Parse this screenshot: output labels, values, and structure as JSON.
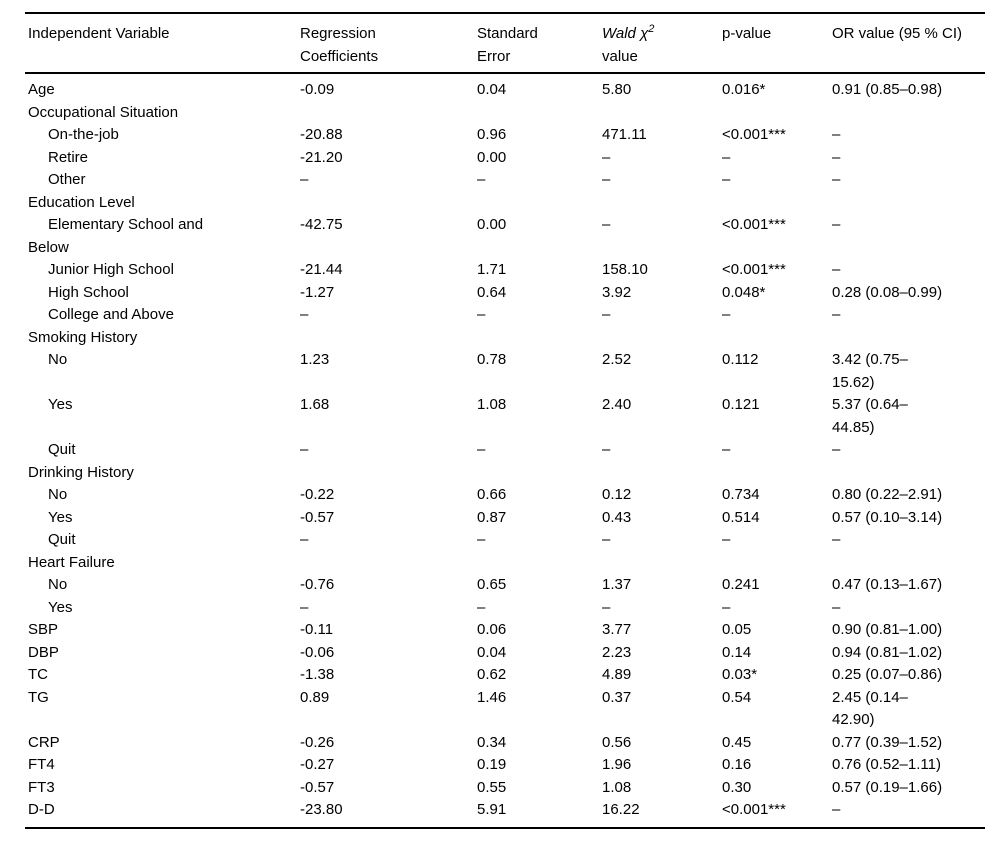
{
  "table": {
    "header": {
      "independent_variable": "Independent Variable",
      "regression_coefficients": "Regression\nCoefficients",
      "standard_error": "Standard\nError",
      "wald_italic": "Wald χ",
      "wald_sup": "2",
      "wald_line2": "value",
      "p_value": "p-value",
      "or_value": "OR value (95 % CI)"
    },
    "rows": [
      {
        "label": "Age",
        "indent": 0,
        "values": [
          "-0.09",
          "0.04",
          "5.80",
          "0.016*",
          "0.91 (0.85–0.98)"
        ]
      },
      {
        "label": "Occupational Situation",
        "indent": 0,
        "values": [
          "",
          "",
          "",
          "",
          ""
        ]
      },
      {
        "label": "On-the-job",
        "indent": 1,
        "values": [
          "-20.88",
          "0.96",
          "471.11",
          "<0.001***",
          "–"
        ]
      },
      {
        "label": "Retire",
        "indent": 1,
        "values": [
          "-21.20",
          "0.00",
          "–",
          "–",
          "–"
        ]
      },
      {
        "label": "Other",
        "indent": 1,
        "values": [
          "–",
          "–",
          "–",
          "–",
          "–"
        ]
      },
      {
        "label": "Education Level",
        "indent": 0,
        "values": [
          "",
          "",
          "",
          "",
          ""
        ]
      },
      {
        "label": "Elementary School and\nBelow",
        "indent": 1,
        "values": [
          "-42.75",
          "0.00",
          "–",
          "<0.001***",
          "–"
        ]
      },
      {
        "label": "Junior High School",
        "indent": 1,
        "values": [
          "-21.44",
          "1.71",
          "158.10",
          "<0.001***",
          "–"
        ]
      },
      {
        "label": "High School",
        "indent": 1,
        "values": [
          "-1.27",
          "0.64",
          "3.92",
          "0.048*",
          "0.28 (0.08–0.99)"
        ]
      },
      {
        "label": "College and Above",
        "indent": 1,
        "values": [
          "–",
          "–",
          "–",
          "–",
          "–"
        ]
      },
      {
        "label": "Smoking History",
        "indent": 0,
        "values": [
          "",
          "",
          "",
          "",
          ""
        ]
      },
      {
        "label": "No",
        "indent": 1,
        "values": [
          "1.23",
          "0.78",
          "2.52",
          "0.112",
          "3.42 (0.75–\n15.62)"
        ]
      },
      {
        "label": "Yes",
        "indent": 1,
        "values": [
          "1.68",
          "1.08",
          "2.40",
          "0.121",
          "5.37 (0.64–\n44.85)"
        ]
      },
      {
        "label": "Quit",
        "indent": 1,
        "values": [
          "–",
          "–",
          "–",
          "–",
          "–"
        ]
      },
      {
        "label": "Drinking History",
        "indent": 0,
        "values": [
          "",
          "",
          "",
          "",
          ""
        ]
      },
      {
        "label": "No",
        "indent": 1,
        "values": [
          "-0.22",
          "0.66",
          "0.12",
          "0.734",
          "0.80 (0.22–2.91)"
        ]
      },
      {
        "label": "Yes",
        "indent": 1,
        "values": [
          "-0.57",
          "0.87",
          "0.43",
          "0.514",
          "0.57 (0.10–3.14)"
        ]
      },
      {
        "label": "Quit",
        "indent": 1,
        "values": [
          "–",
          "–",
          "–",
          "–",
          "–"
        ]
      },
      {
        "label": "Heart Failure",
        "indent": 0,
        "values": [
          "",
          "",
          "",
          "",
          ""
        ]
      },
      {
        "label": "No",
        "indent": 1,
        "values": [
          "-0.76",
          "0.65",
          "1.37",
          "0.241",
          "0.47 (0.13–1.67)"
        ]
      },
      {
        "label": "Yes",
        "indent": 1,
        "values": [
          "–",
          "–",
          "–",
          "–",
          "–"
        ]
      },
      {
        "label": "SBP",
        "indent": 0,
        "values": [
          "-0.11",
          "0.06",
          "3.77",
          "0.05",
          "0.90 (0.81–1.00)"
        ]
      },
      {
        "label": "DBP",
        "indent": 0,
        "values": [
          "-0.06",
          "0.04",
          "2.23",
          "0.14",
          "0.94 (0.81–1.02)"
        ]
      },
      {
        "label": "TC",
        "indent": 0,
        "values": [
          "-1.38",
          "0.62",
          "4.89",
          "0.03*",
          "0.25 (0.07–0.86)"
        ]
      },
      {
        "label": "TG",
        "indent": 0,
        "values": [
          "0.89",
          "1.46",
          "0.37",
          "0.54",
          "2.45 (0.14–\n42.90)"
        ]
      },
      {
        "label": "CRP",
        "indent": 0,
        "values": [
          "-0.26",
          "0.34",
          "0.56",
          "0.45",
          "0.77 (0.39–1.52)"
        ]
      },
      {
        "label": "FT4",
        "indent": 0,
        "values": [
          "-0.27",
          "0.19",
          "1.96",
          "0.16",
          "0.76 (0.52–1.11)"
        ]
      },
      {
        "label": "FT3",
        "indent": 0,
        "values": [
          "-0.57",
          "0.55",
          "1.08",
          "0.30",
          "0.57 (0.19–1.66)"
        ]
      },
      {
        "label": "D-D",
        "indent": 0,
        "values": [
          "-23.80",
          "5.91",
          "16.22",
          "<0.001***",
          "–"
        ]
      }
    ]
  }
}
